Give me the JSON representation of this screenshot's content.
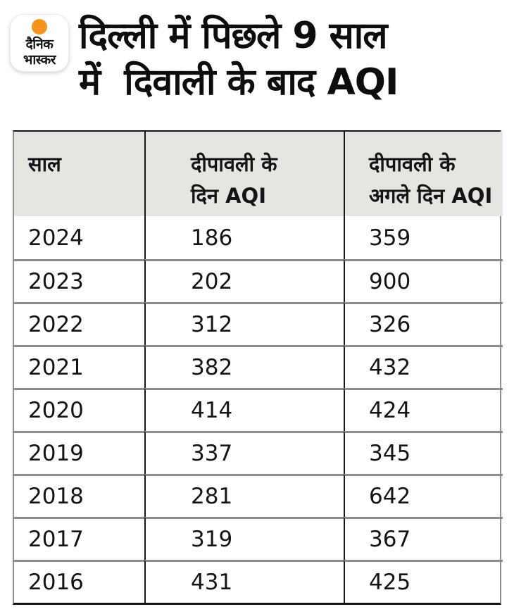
{
  "colors": {
    "accent_orange": "#F6921E",
    "header_background": "#E6E5E2",
    "row_separator": "#8C8C8C",
    "column_separator": "#161616",
    "text": "#141414"
  },
  "brand": {
    "name_line1": "दैनिक",
    "name_line2": "भास्कर"
  },
  "title": {
    "line1": "दिल्ली में पिछले 9 साल",
    "line2": "में  दिवाली के बाद AQI"
  },
  "table": {
    "header": {
      "year": "साल",
      "day_line1": "दीपावली के",
      "day_line2": "दिन AQI",
      "next_line1": "दीपावली के",
      "next_line2": "अगले दिन AQI"
    },
    "rows": [
      {
        "year": "2024",
        "day": "186",
        "next": "359"
      },
      {
        "year": "2023",
        "day": "202",
        "next": "900"
      },
      {
        "year": "2022",
        "day": "312",
        "next": "326"
      },
      {
        "year": "2021",
        "day": "382",
        "next": "432"
      },
      {
        "year": "2020",
        "day": "414",
        "next": "424"
      },
      {
        "year": "2019",
        "day": "337",
        "next": "345"
      },
      {
        "year": "2018",
        "day": "281",
        "next": "642"
      },
      {
        "year": "2017",
        "day": "319",
        "next": "367"
      },
      {
        "year": "2016",
        "day": "431",
        "next": "425"
      }
    ]
  },
  "chart_data": {
    "type": "table",
    "title": "दिल्ली में पिछले 9 साल में दिवाली के बाद AQI",
    "columns": [
      "साल",
      "दीपावली के दिन AQI",
      "दीपावली के अगले दिन AQI"
    ],
    "rows": [
      [
        2024,
        186,
        359
      ],
      [
        2023,
        202,
        900
      ],
      [
        2022,
        312,
        326
      ],
      [
        2021,
        382,
        432
      ],
      [
        2020,
        414,
        424
      ],
      [
        2019,
        337,
        345
      ],
      [
        2018,
        281,
        642
      ],
      [
        2017,
        319,
        367
      ],
      [
        2016,
        431,
        425
      ]
    ]
  }
}
